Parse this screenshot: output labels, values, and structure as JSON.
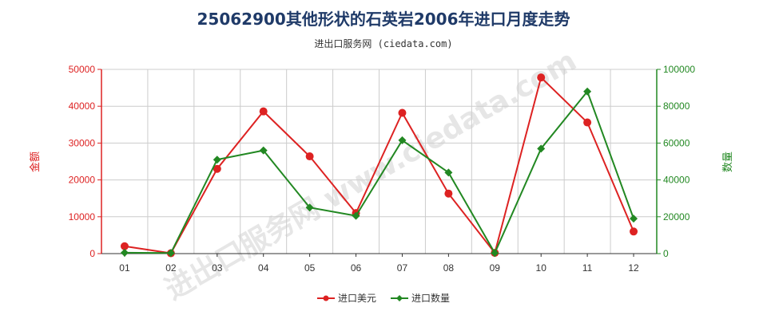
{
  "title": "25062900其他形状的石英岩2006年进口月度走势",
  "subtitle": "进出口服务网 (ciedata.com)",
  "watermark": "进出口服务网 www.ciedata.com",
  "colors": {
    "left_axis": "#dd2222",
    "right_axis": "#228822",
    "grid": "#cccccc"
  },
  "chart_data": {
    "type": "line",
    "categories": [
      "01",
      "02",
      "03",
      "04",
      "05",
      "06",
      "07",
      "08",
      "09",
      "10",
      "11",
      "12"
    ],
    "ylabel_left": "金额",
    "ylabel_right": "数量",
    "ylim_left": [
      0,
      50000
    ],
    "ylim_right": [
      0,
      100000
    ],
    "yticks_left": [
      "0",
      "10000",
      "20000",
      "30000",
      "40000",
      "50000"
    ],
    "yticks_right": [
      "0",
      "20000",
      "40000",
      "60000",
      "80000",
      "100000"
    ],
    "grid": true,
    "legend_position": "bottom",
    "series": [
      {
        "name": "进口美元",
        "axis": "left",
        "color": "#dd2222",
        "marker": "circle",
        "values": [
          2000,
          100,
          23000,
          38600,
          26400,
          11000,
          38200,
          16300,
          200,
          47800,
          35600,
          6000
        ]
      },
      {
        "name": "进口数量",
        "axis": "right",
        "color": "#228822",
        "marker": "diamond",
        "values": [
          500,
          300,
          51000,
          56000,
          25000,
          20500,
          61500,
          44000,
          300,
          57000,
          88000,
          19000
        ]
      }
    ]
  }
}
